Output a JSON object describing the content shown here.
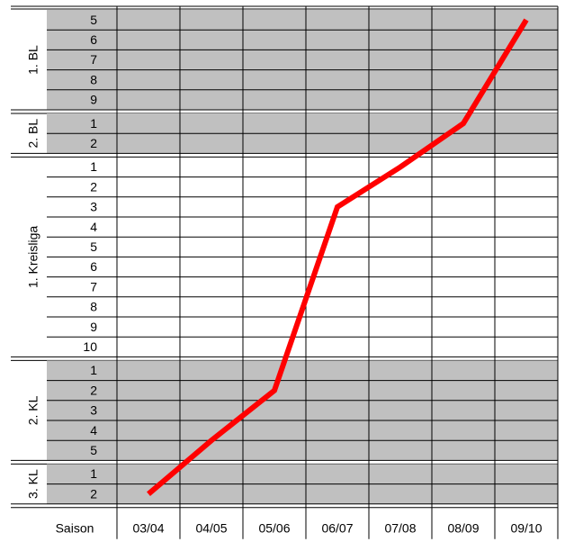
{
  "chart_data": {
    "type": "line",
    "x_label": "Saison",
    "categories": [
      "03/04",
      "04/05",
      "05/06",
      "06/07",
      "07/08",
      "08/09",
      "09/10"
    ],
    "sections": [
      {
        "label": "1. BL",
        "shaded": true,
        "rows": [
          5,
          6,
          7,
          8,
          9
        ]
      },
      {
        "label": "2. BL",
        "shaded": true,
        "rows": [
          1,
          2
        ]
      },
      {
        "label": "1. Kreisliga",
        "shaded": false,
        "rows": [
          1,
          2,
          3,
          4,
          5,
          6,
          7,
          8,
          9,
          10
        ]
      },
      {
        "label": "2. KL",
        "shaded": true,
        "rows": [
          1,
          2,
          3,
          4,
          5
        ]
      },
      {
        "label": "3. KL",
        "shaded": true,
        "rows": [
          1,
          2
        ]
      }
    ],
    "values": [
      24,
      21.5,
      19,
      10,
      8,
      6,
      1
    ],
    "color": "#ff0000",
    "shade_color": "#c0c0c0"
  }
}
